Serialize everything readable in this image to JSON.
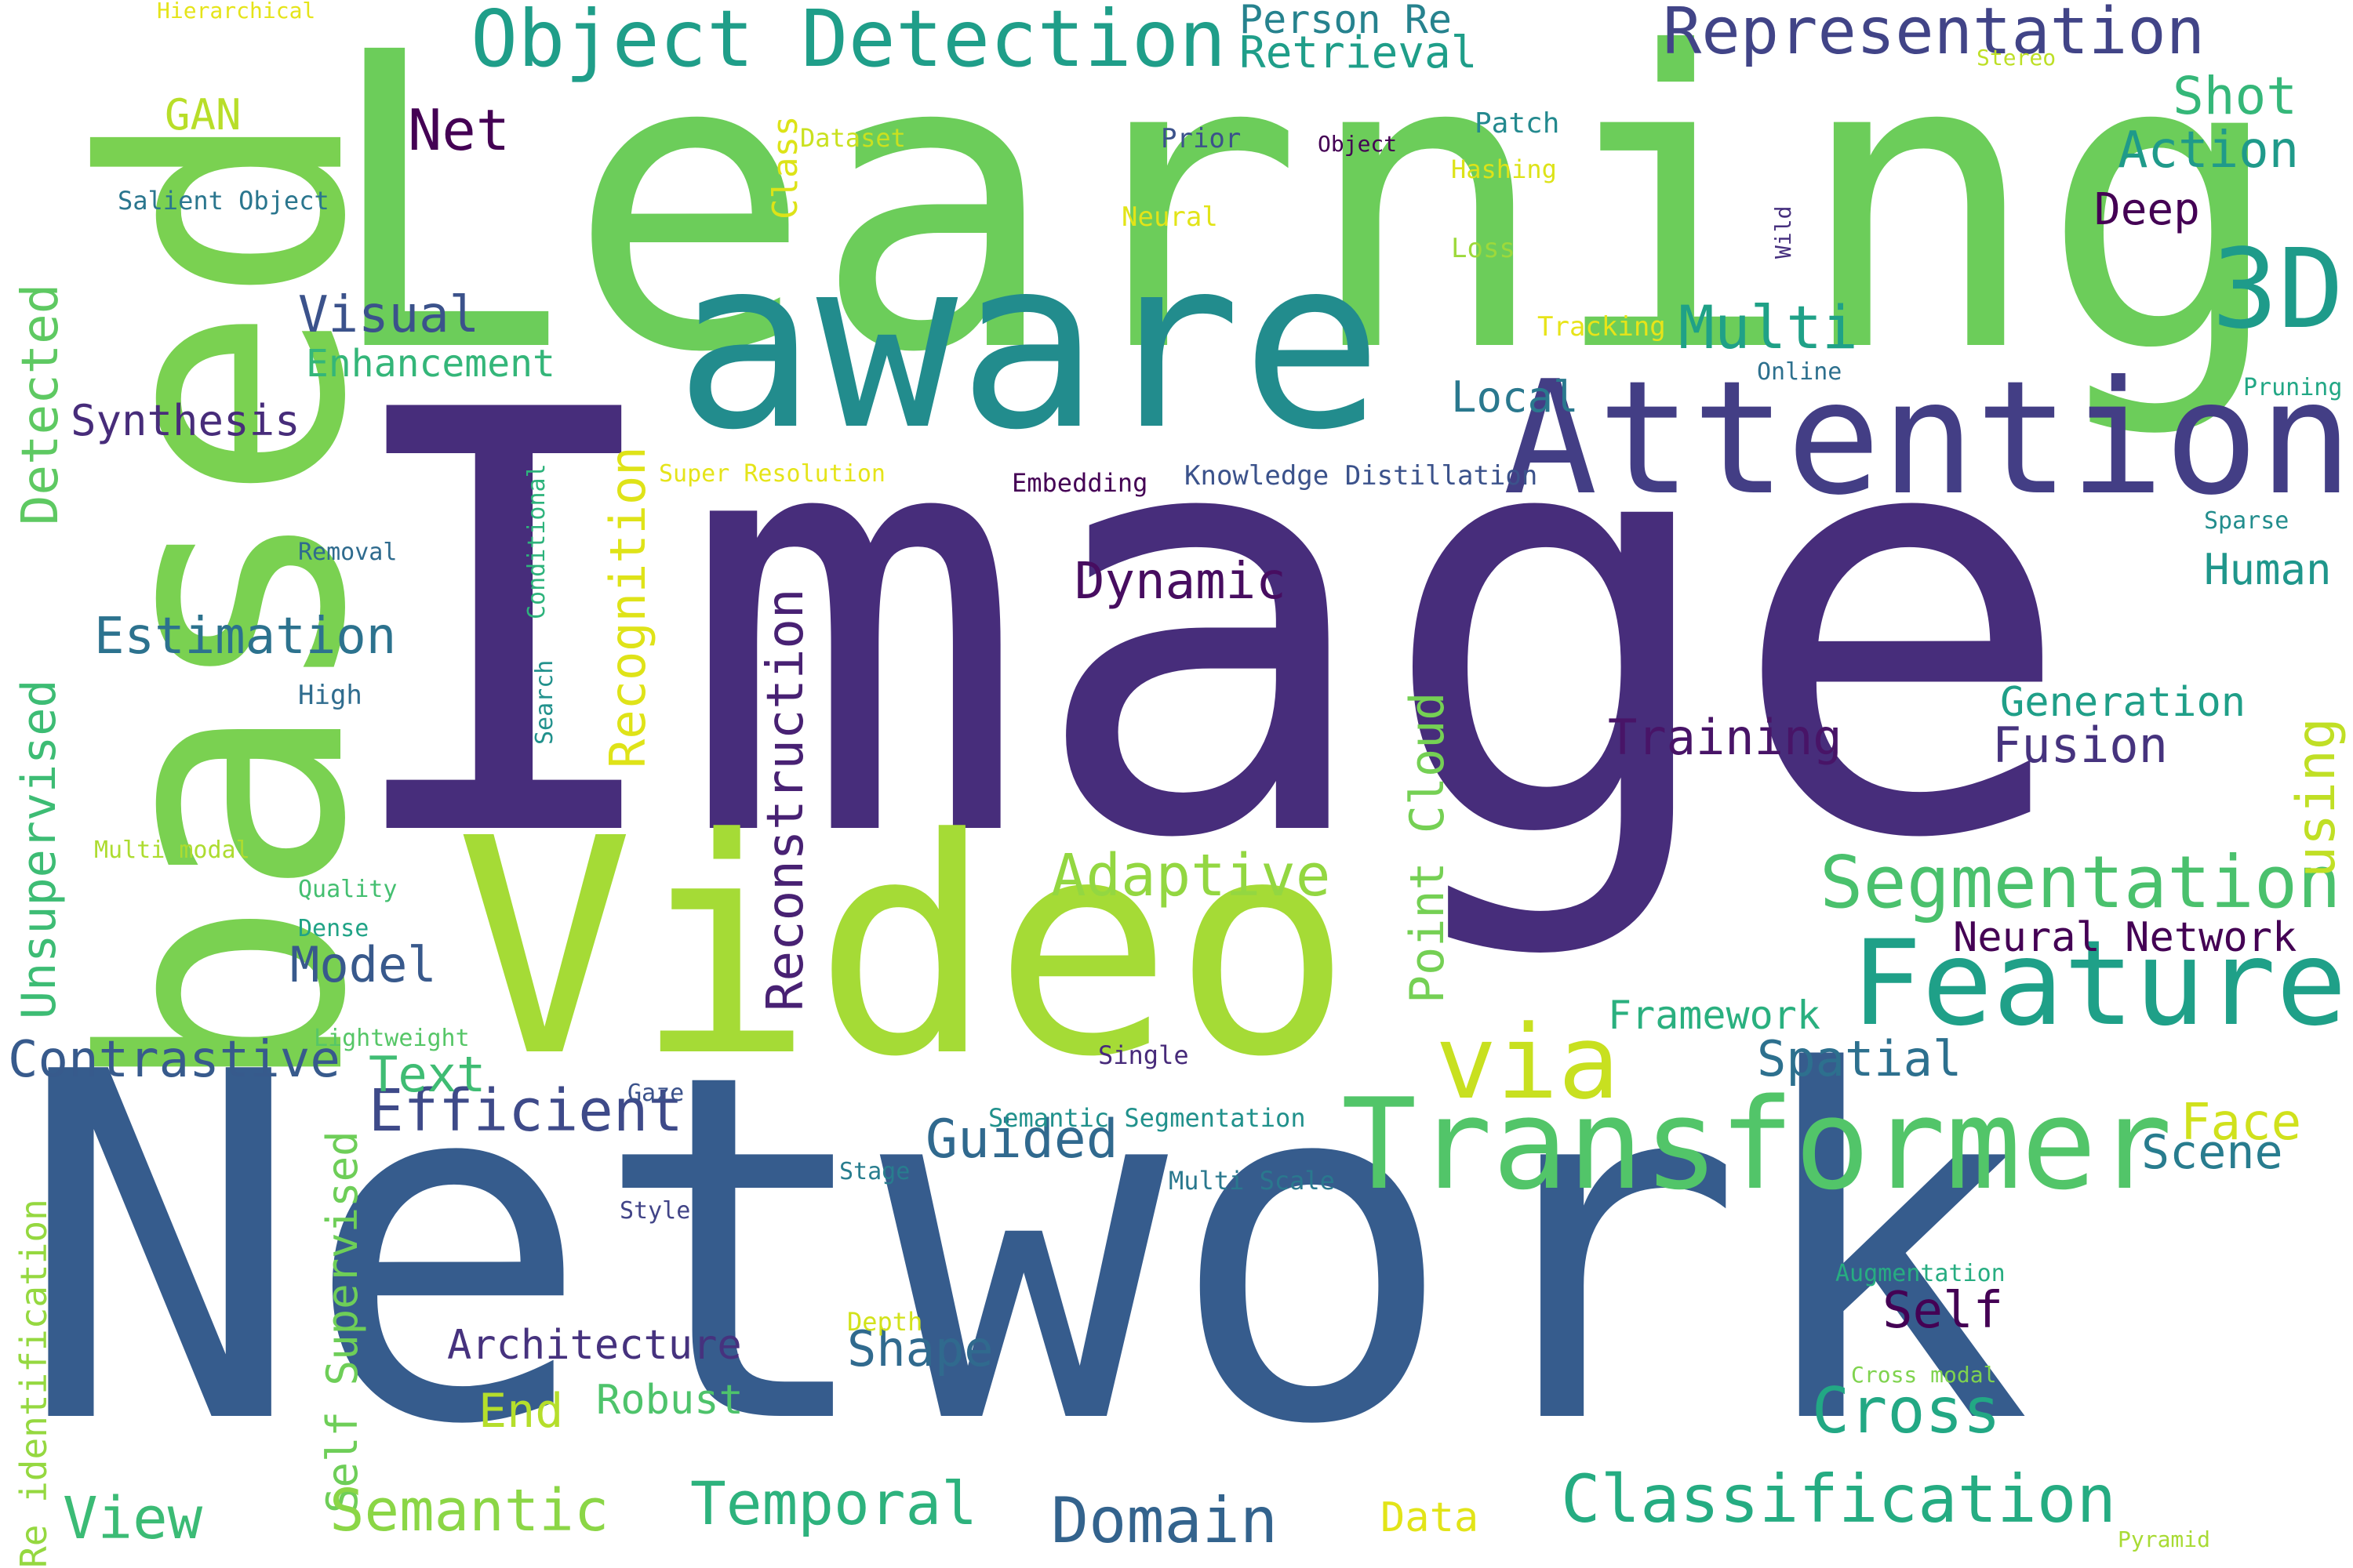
{
  "words": [
    {
      "text": "Network",
      "color": "#365c8d",
      "vertical": false
    },
    {
      "text": "Image",
      "color": "#472d7b",
      "vertical": false
    },
    {
      "text": "Learning",
      "color": "#6ccd5a",
      "vertical": false
    },
    {
      "text": "based",
      "color": "#7ad151",
      "vertical": true
    },
    {
      "text": "Video",
      "color": "#a5db36",
      "vertical": false
    },
    {
      "text": "aware",
      "color": "#228c8d",
      "vertical": false
    },
    {
      "text": "Attention",
      "color": "#433e85",
      "vertical": false
    },
    {
      "text": "Transformer",
      "color": "#52c569",
      "vertical": false
    },
    {
      "text": "Feature",
      "color": "#1fa088",
      "vertical": false
    },
    {
      "text": "via",
      "color": "#c8e020",
      "vertical": false
    },
    {
      "text": "3D",
      "color": "#1e9b8a",
      "vertical": false
    },
    {
      "text": "Object Detection",
      "color": "#1f9e89",
      "vertical": false
    },
    {
      "text": "Representation",
      "color": "#414487",
      "vertical": false
    },
    {
      "text": "Segmentation",
      "color": "#4ac16d",
      "vertical": false
    },
    {
      "text": "Classification",
      "color": "#25ac82",
      "vertical": false
    },
    {
      "text": "Reconstruction",
      "color": "#482173",
      "vertical": true
    },
    {
      "text": "Recognition",
      "color": "#dfe318",
      "vertical": true
    },
    {
      "text": "Point Cloud",
      "color": "#75d054",
      "vertical": true
    },
    {
      "text": "Detected",
      "color": "#5ec962",
      "vertical": true
    },
    {
      "text": "Unsupervised",
      "color": "#3dbc74",
      "vertical": true
    },
    {
      "text": "Self Supervised",
      "color": "#6ece58",
      "vertical": true
    },
    {
      "text": "Re identification",
      "color": "#95d840",
      "vertical": true
    },
    {
      "text": "Class",
      "color": "#dde318",
      "vertical": true
    },
    {
      "text": "using",
      "color": "#c0df25",
      "vertical": true
    },
    {
      "text": "Adaptive",
      "color": "#93d741",
      "vertical": false
    },
    {
      "text": "Multi",
      "color": "#1fa187",
      "vertical": false
    },
    {
      "text": "Estimation",
      "color": "#2c728e",
      "vertical": false
    },
    {
      "text": "Efficient",
      "color": "#3e4a89",
      "vertical": false
    },
    {
      "text": "Contrastive",
      "color": "#375a8c",
      "vertical": false
    },
    {
      "text": "Temporal",
      "color": "#2db27d",
      "vertical": false
    },
    {
      "text": "Domain",
      "color": "#33638d",
      "vertical": false
    },
    {
      "text": "Semantic",
      "color": "#8bd646",
      "vertical": false
    },
    {
      "text": "Cross",
      "color": "#22a884",
      "vertical": false
    },
    {
      "text": "Guided",
      "color": "#30698e",
      "vertical": false
    },
    {
      "text": "View",
      "color": "#3bbb75",
      "vertical": false
    },
    {
      "text": "Shape",
      "color": "#306a8e",
      "vertical": false
    },
    {
      "text": "Spatial",
      "color": "#2d708e",
      "vertical": false
    },
    {
      "text": "Training",
      "color": "#481467",
      "vertical": false
    },
    {
      "text": "Fusion",
      "color": "#46337e",
      "vertical": false
    },
    {
      "text": "Dynamic",
      "color": "#470d60",
      "vertical": false
    },
    {
      "text": "Visual",
      "color": "#3b528b",
      "vertical": false
    },
    {
      "text": "Model",
      "color": "#38598c",
      "vertical": false
    },
    {
      "text": "Text",
      "color": "#3fbc73",
      "vertical": false
    },
    {
      "text": "Architecture",
      "color": "#46327e",
      "vertical": false
    },
    {
      "text": "Self",
      "color": "#440154",
      "vertical": false
    },
    {
      "text": "Neural Network",
      "color": "#440154",
      "vertical": false
    },
    {
      "text": "Net",
      "color": "#440154",
      "vertical": false
    },
    {
      "text": "Shot",
      "color": "#35b779",
      "vertical": false
    },
    {
      "text": "Action",
      "color": "#1f9a8a",
      "vertical": false
    },
    {
      "text": "Deep",
      "color": "#440154",
      "vertical": false
    },
    {
      "text": "Human",
      "color": "#1f968b",
      "vertical": false
    },
    {
      "text": "Generation",
      "color": "#1f9f88",
      "vertical": false
    },
    {
      "text": "Face",
      "color": "#d0e11c",
      "vertical": false
    },
    {
      "text": "Scene",
      "color": "#287c8e",
      "vertical": false
    },
    {
      "text": "Framework",
      "color": "#2ab07f",
      "vertical": false
    },
    {
      "text": "Robust",
      "color": "#4ec36b",
      "vertical": false
    },
    {
      "text": "End",
      "color": "#b5de2b",
      "vertical": false
    },
    {
      "text": "Local",
      "color": "#2a788e",
      "vertical": false
    },
    {
      "text": "Enhancement",
      "color": "#34b679",
      "vertical": false
    },
    {
      "text": "Synthesis",
      "color": "#472c7a",
      "vertical": false
    },
    {
      "text": "Person Re",
      "color": "#26828e",
      "vertical": false
    },
    {
      "text": "Retrieval",
      "color": "#1f9e89",
      "vertical": false
    },
    {
      "text": "GAN",
      "color": "#b8de29",
      "vertical": false
    },
    {
      "text": "Data",
      "color": "#e2e418",
      "vertical": false
    },
    {
      "text": "Hierarchical",
      "color": "#e5e419",
      "vertical": false
    },
    {
      "text": "Stereo",
      "color": "#bddf26",
      "vertical": false
    },
    {
      "text": "Salient Object",
      "color": "#2a768e",
      "vertical": false
    },
    {
      "text": "Dataset",
      "color": "#cae11f",
      "vertical": false
    },
    {
      "text": "Prior",
      "color": "#3b528b",
      "vertical": false
    },
    {
      "text": "Object",
      "color": "#440154",
      "vertical": false
    },
    {
      "text": "Patch",
      "color": "#23898e",
      "vertical": false
    },
    {
      "text": "Hashing",
      "color": "#dde318",
      "vertical": false
    },
    {
      "text": "Neural",
      "color": "#e2e418",
      "vertical": false
    },
    {
      "text": "Loss",
      "color": "#9dd93b",
      "vertical": false
    },
    {
      "text": "Wild",
      "color": "#46307e",
      "vertical": true
    },
    {
      "text": "Tracking",
      "color": "#e7e419",
      "vertical": false
    },
    {
      "text": "Online",
      "color": "#2d708e",
      "vertical": false
    },
    {
      "text": "Pruning",
      "color": "#22a785",
      "vertical": false
    },
    {
      "text": "Super Resolution",
      "color": "#e5e419",
      "vertical": false
    },
    {
      "text": "Embedding",
      "color": "#440154",
      "vertical": false
    },
    {
      "text": "Knowledge Distillation",
      "color": "#3b528b",
      "vertical": false
    },
    {
      "text": "Sparse",
      "color": "#228d8d",
      "vertical": false
    },
    {
      "text": "Removal",
      "color": "#2f6b8e",
      "vertical": false
    },
    {
      "text": "Conditional",
      "color": "#2eb37c",
      "vertical": true
    },
    {
      "text": "High",
      "color": "#2f6c8e",
      "vertical": false
    },
    {
      "text": "Search",
      "color": "#21918c",
      "vertical": true
    },
    {
      "text": "Multi modal",
      "color": "#addc30",
      "vertical": false
    },
    {
      "text": "Quality",
      "color": "#44bf70",
      "vertical": false
    },
    {
      "text": "Dense",
      "color": "#20a386",
      "vertical": false
    },
    {
      "text": "Lightweight",
      "color": "#56c667",
      "vertical": false
    },
    {
      "text": "Gaze",
      "color": "#3b528b",
      "vertical": false
    },
    {
      "text": "Single",
      "color": "#472a7a",
      "vertical": false
    },
    {
      "text": "Semantic Segmentation",
      "color": "#21918c",
      "vertical": false
    },
    {
      "text": "Stage",
      "color": "#287d8e",
      "vertical": false
    },
    {
      "text": "Multi Scale",
      "color": "#2a788e",
      "vertical": false
    },
    {
      "text": "Style",
      "color": "#414487",
      "vertical": false
    },
    {
      "text": "Depth",
      "color": "#d2e21b",
      "vertical": false
    },
    {
      "text": "Augmentation",
      "color": "#27ad81",
      "vertical": false
    },
    {
      "text": "Cross modal",
      "color": "#7fd34e",
      "vertical": false
    },
    {
      "text": "Pyramid",
      "color": "#a8db34",
      "vertical": false
    }
  ]
}
